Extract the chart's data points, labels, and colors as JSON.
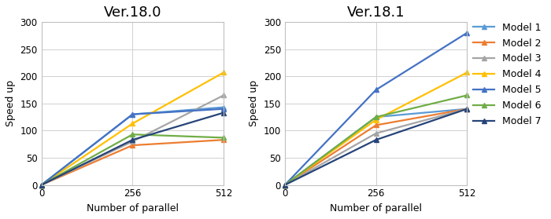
{
  "titles": [
    "Ver.18.0",
    "Ver.18.1"
  ],
  "xlabel": "Number of parallel",
  "ylabel": "Speed up",
  "x": [
    0,
    256,
    512
  ],
  "xticks": [
    0,
    256,
    512
  ],
  "ylim": [
    0,
    300
  ],
  "yticks": [
    0,
    50,
    100,
    150,
    200,
    250,
    300
  ],
  "models": [
    "Model 1",
    "Model 2",
    "Model 3",
    "Model 4",
    "Model 5",
    "Model 6",
    "Model 7"
  ],
  "colors": [
    "#5b9bd5",
    "#ed7d31",
    "#a5a5a5",
    "#ffc000",
    "#4472c4",
    "#70ad47",
    "#264478"
  ],
  "data_v18_0": [
    [
      0,
      130,
      143
    ],
    [
      0,
      73,
      83
    ],
    [
      0,
      80,
      165
    ],
    [
      0,
      113,
      207
    ],
    [
      0,
      130,
      140
    ],
    [
      0,
      93,
      87
    ],
    [
      0,
      83,
      133
    ]
  ],
  "data_v18_1": [
    [
      0,
      125,
      140
    ],
    [
      0,
      110,
      140
    ],
    [
      0,
      95,
      140
    ],
    [
      0,
      120,
      207
    ],
    [
      0,
      175,
      280
    ],
    [
      0,
      125,
      165
    ],
    [
      0,
      83,
      140
    ]
  ],
  "title_fontsize": 13,
  "axis_label_fontsize": 9,
  "tick_fontsize": 8.5,
  "legend_fontsize": 9,
  "linewidth": 1.6,
  "markersize": 5,
  "grid_color": "#d0d0d0",
  "background_color": "#ffffff"
}
